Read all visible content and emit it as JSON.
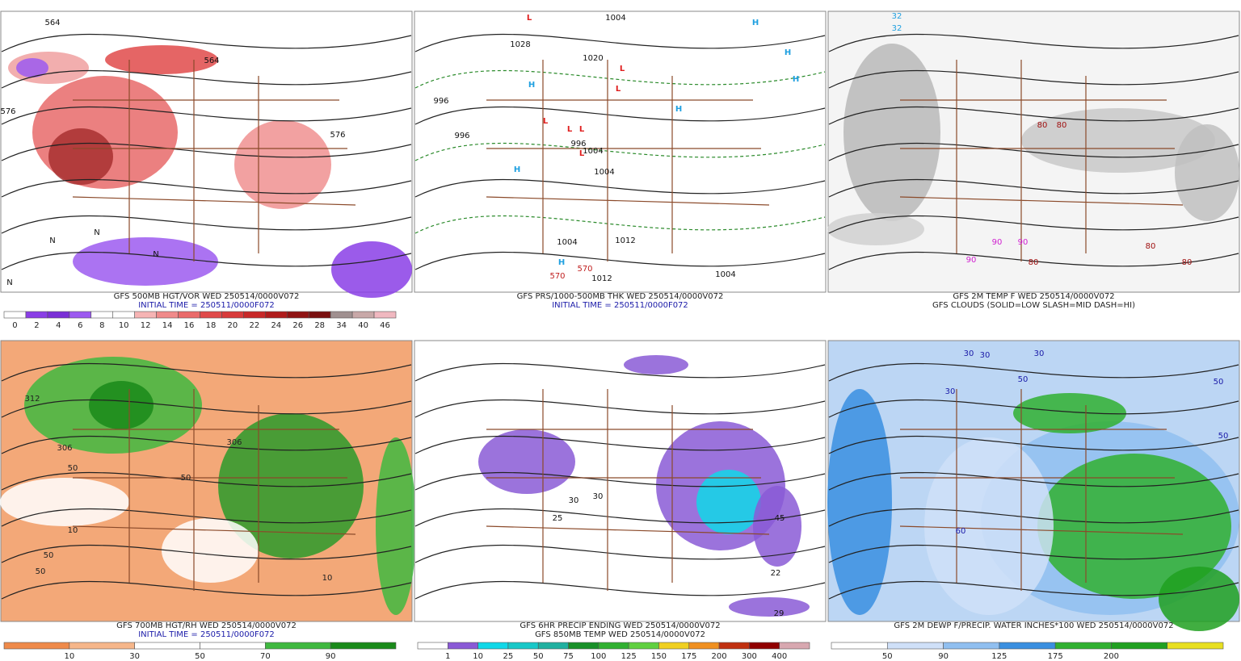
{
  "panels": [
    {
      "title": "GFS 500MB HGT/VOR WED 250514/0000V072",
      "subtitle": "INITIAL TIME = 250511/0000F072",
      "colorbar": {
        "labels": [
          "0",
          "2",
          "4",
          "6",
          "8",
          "10",
          "12",
          "14",
          "16",
          "18",
          "20",
          "22",
          "24",
          "26",
          "28",
          "34",
          "40",
          "46"
        ],
        "colors": [
          "#ffffff",
          "#8a3ee6",
          "#7a2fd6",
          "#9c5af0",
          "#ffffff",
          "#ffffff",
          "#f6b4b4",
          "#f08a8a",
          "#ea6a6a",
          "#e04a4a",
          "#d83a3a",
          "#c82828",
          "#b01c1c",
          "#901414",
          "#7a1010",
          "#a09090",
          "#c8a8a8",
          "#f0b8c0"
        ]
      },
      "map_labels": [
        "564",
        "564",
        "576",
        "576",
        "N",
        "N",
        "N",
        "N"
      ]
    },
    {
      "title": "GFS PRS/1000-500MB THK WED 250514/0000V072",
      "subtitle": "INITIAL TIME = 250511/0000F072",
      "map_labels": [
        "L",
        "L",
        "L",
        "L",
        "L",
        "L",
        "L",
        "H",
        "H",
        "H",
        "H",
        "H",
        "H",
        "H",
        "1012",
        "1004",
        "1004",
        "1028",
        "1020",
        "996",
        "996",
        "996",
        "1004",
        "1004",
        "1004",
        "1012",
        "570",
        "570"
      ]
    },
    {
      "title": "GFS 2M TEMP F WED 250514/0000V072",
      "subtitle": "GFS CLOUDS (SOLID=LOW SLASH=MID DASH=HI)",
      "map_labels": [
        "32",
        "32",
        "80",
        "80",
        "80",
        "90",
        "90",
        "90",
        "80",
        "80"
      ]
    },
    {
      "title": "GFS 700MB HGT/RH WED 250514/0000V072",
      "subtitle": "INITIAL TIME = 250511/0000F072",
      "colorbar": {
        "labels": [
          "10",
          "30",
          "50",
          "70",
          "90"
        ],
        "colors": [
          "#ef8a4a",
          "#f6b68a",
          "#ffffff",
          "#ffffff",
          "#3fb83f",
          "#1a8a1a"
        ]
      },
      "map_labels": [
        "312",
        "306",
        "306",
        "50",
        "50",
        "50",
        "10",
        "10",
        "50"
      ]
    },
    {
      "title": "GFS 6HR PRECIP ENDING WED 250514/0000V072",
      "subtitle": "GFS 850MB TEMP WED 250514/0000V072",
      "colorbar": {
        "labels": [
          "1",
          "10",
          "25",
          "50",
          "75",
          "100",
          "125",
          "150",
          "175",
          "200",
          "300",
          "400"
        ],
        "colors": [
          "#ffffff",
          "#8a5ad6",
          "#10d8e8",
          "#18c8c8",
          "#20b0a0",
          "#189028",
          "#30b030",
          "#60d040",
          "#f0d020",
          "#f09020",
          "#c03010",
          "#900000",
          "#d8a8b0"
        ]
      },
      "map_labels": [
        "25",
        "30",
        "45",
        "22",
        "29",
        "30"
      ]
    },
    {
      "title": "GFS 2M DEWP F/PRECIP. WATER INCHES*100 WED 250514/0000V072",
      "colorbar": {
        "labels": [
          "50",
          "90",
          "125",
          "175",
          "200"
        ],
        "colors": [
          "#ffffff",
          "#cfe0f8",
          "#90bff0",
          "#3a8fe0",
          "#30b030",
          "#20a020",
          "#e8e020"
        ]
      },
      "map_labels": [
        "30",
        "30",
        "30",
        "30",
        "50",
        "50",
        "60",
        "50"
      ]
    }
  ]
}
